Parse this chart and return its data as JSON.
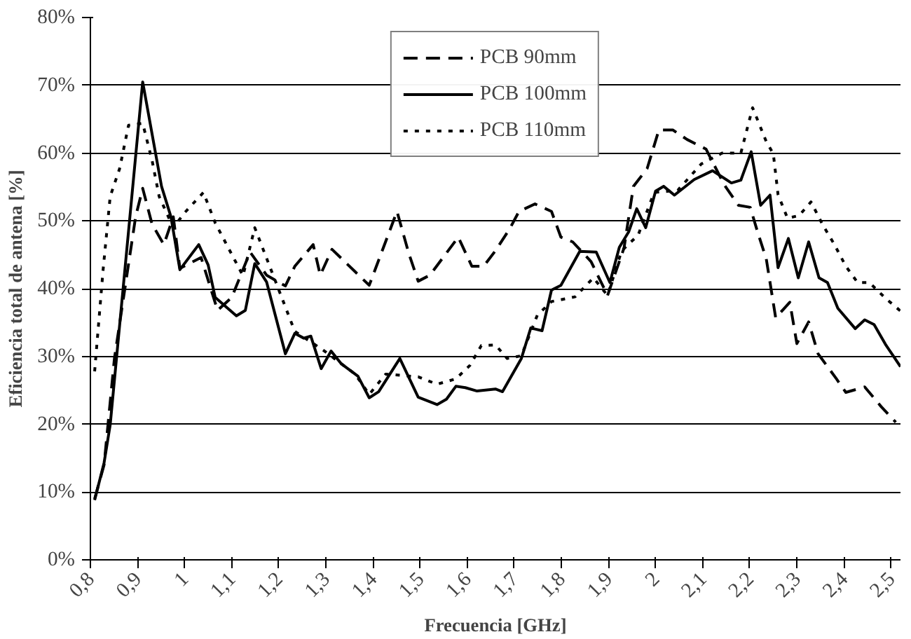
{
  "chart_data": {
    "type": "line",
    "xlabel": "Frecuencia [GHz]",
    "ylabel": "Eficiencia total de antena [%]",
    "xlim": [
      0.8,
      2.52
    ],
    "ylim": [
      0,
      80
    ],
    "xticks": [
      {
        "value": 0.8,
        "label": "0,8"
      },
      {
        "value": 0.9,
        "label": "0,9"
      },
      1,
      {
        "value": 1.1,
        "label": "1,1"
      },
      {
        "value": 1.2,
        "label": "1,2"
      },
      {
        "value": 1.3,
        "label": "1,3"
      },
      {
        "value": 1.4,
        "label": "1,4"
      },
      {
        "value": 1.5,
        "label": "1,5"
      },
      {
        "value": 1.6,
        "label": "1,6"
      },
      {
        "value": 1.7,
        "label": "1,7"
      },
      {
        "value": 1.8,
        "label": "1,8"
      },
      {
        "value": 1.9,
        "label": "1,9"
      },
      2,
      {
        "value": 2.1,
        "label": "2,1"
      },
      {
        "value": 2.2,
        "label": "2,2"
      },
      {
        "value": 2.3,
        "label": "2,3"
      },
      {
        "value": 2.4,
        "label": "2,4"
      },
      {
        "value": 2.5,
        "label": "2,5"
      }
    ],
    "yticks": [
      {
        "value": 0,
        "label": "0%"
      },
      {
        "value": 10,
        "label": "10%"
      },
      {
        "value": 20,
        "label": "20%"
      },
      {
        "value": 30,
        "label": "30%"
      },
      {
        "value": 40,
        "label": "40%"
      },
      {
        "value": 50,
        "label": "50%"
      },
      {
        "value": 60,
        "label": "60%"
      },
      {
        "value": 70,
        "label": "70%"
      },
      {
        "value": 80,
        "label": "80%"
      }
    ],
    "grid": "y",
    "legend": "top",
    "marker": "none",
    "series": [
      {
        "name": "PCB 90mm",
        "color": "#000000",
        "line_style": "dashed",
        "x": [
          0.809,
          0.829,
          0.851,
          0.896,
          0.911,
          0.931,
          0.956,
          0.976,
          0.99,
          1.035,
          1.07,
          1.1,
          1.139,
          1.174,
          1.214,
          1.234,
          1.273,
          1.288,
          1.313,
          1.392,
          1.451,
          1.476,
          1.496,
          1.521,
          1.581,
          1.61,
          1.635,
          1.66,
          1.69,
          1.71,
          1.744,
          1.779,
          1.799,
          1.824,
          1.863,
          1.898,
          1.933,
          1.953,
          1.982,
          2.007,
          2.037,
          2.067,
          2.107,
          2.146,
          2.176,
          2.201,
          2.216,
          2.235,
          2.255,
          2.285,
          2.3,
          2.325,
          2.345,
          2.384,
          2.404,
          2.444,
          2.479,
          2.51
        ],
        "values": [
          9,
          14,
          29.7,
          50.6,
          54.8,
          49.5,
          46.5,
          50.6,
          43,
          44.6,
          36.8,
          38.7,
          45.4,
          42,
          40.4,
          43.3,
          46.5,
          42,
          45.8,
          40.5,
          51.4,
          45.2,
          41.1,
          42,
          47.6,
          43.3,
          43.3,
          45.6,
          48.8,
          51.4,
          52.5,
          51.4,
          47.6,
          46.9,
          44,
          39,
          46,
          55.1,
          57.7,
          63.4,
          63.4,
          62,
          60.6,
          55.3,
          52.3,
          52,
          48.5,
          44.4,
          35.7,
          38,
          31.9,
          35.1,
          30.4,
          26.7,
          24.7,
          25.5,
          22.6,
          20.3
        ]
      },
      {
        "name": "PCB 100mm",
        "color": "#000000",
        "line_style": "solid",
        "x": [
          0.809,
          0.829,
          0.842,
          0.911,
          0.951,
          0.971,
          0.99,
          1.03,
          1.05,
          1.065,
          1.11,
          1.129,
          1.149,
          1.174,
          1.214,
          1.234,
          1.253,
          1.268,
          1.29,
          1.311,
          1.333,
          1.368,
          1.392,
          1.412,
          1.457,
          1.496,
          1.536,
          1.556,
          1.576,
          1.596,
          1.621,
          1.66,
          1.675,
          1.715,
          1.735,
          1.759,
          1.779,
          1.799,
          1.839,
          1.874,
          1.903,
          1.923,
          1.943,
          1.96,
          1.979,
          2.0,
          2.017,
          2.04,
          2.082,
          2.121,
          2.161,
          2.181,
          2.203,
          2.223,
          2.243,
          2.26,
          2.282,
          2.303,
          2.325,
          2.347,
          2.365,
          2.387,
          2.424,
          2.444,
          2.464,
          2.488,
          2.52
        ],
        "values": [
          8.8,
          14.3,
          19.9,
          70.5,
          55.1,
          50.6,
          42.8,
          46.5,
          43.5,
          38.7,
          36,
          36.8,
          43.7,
          41,
          30.4,
          33.4,
          32.7,
          33,
          28.2,
          30.8,
          28.9,
          27.1,
          23.9,
          24.8,
          29.7,
          24,
          22.9,
          23.7,
          25.6,
          25.4,
          24.9,
          25.2,
          24.8,
          29.7,
          34.2,
          33.8,
          39.8,
          40.5,
          45.5,
          45.4,
          40.9,
          46.1,
          48.4,
          51.8,
          49,
          54.4,
          55.1,
          53.8,
          56.1,
          57.4,
          55.6,
          56,
          60.2,
          52.3,
          53.8,
          43.1,
          47.4,
          41.6,
          46.9,
          41.6,
          40.9,
          37.1,
          34.1,
          35.4,
          34.7,
          31.8,
          28.5
        ]
      },
      {
        "name": "PCB 110mm",
        "color": "#000000",
        "line_style": "dotted",
        "x": [
          0.809,
          0.827,
          0.842,
          0.862,
          0.881,
          0.911,
          0.931,
          0.946,
          0.976,
          1.0,
          1.04,
          1.065,
          1.124,
          1.149,
          1.194,
          1.234,
          1.293,
          1.362,
          1.392,
          1.427,
          1.496,
          1.536,
          1.576,
          1.606,
          1.63,
          1.66,
          1.685,
          1.715,
          1.749,
          1.779,
          1.829,
          1.868,
          1.898,
          1.928,
          1.963,
          1.997,
          2.047,
          2.097,
          2.141,
          2.181,
          2.206,
          2.235,
          2.25,
          2.26,
          2.28,
          2.305,
          2.33,
          2.355,
          2.379,
          2.404,
          2.429,
          2.454,
          2.488,
          2.52
        ],
        "values": [
          27.8,
          42.8,
          53.6,
          57.7,
          64.1,
          64.4,
          58.9,
          53.6,
          49,
          51.2,
          54.2,
          49.7,
          41.9,
          49,
          40.9,
          33.7,
          31,
          27.4,
          24.4,
          27.4,
          27,
          25.9,
          26.7,
          28.7,
          31.6,
          31.7,
          29.7,
          30.1,
          36.1,
          38.1,
          38.8,
          41.6,
          39,
          45.6,
          47.9,
          54.2,
          54.5,
          58.4,
          60,
          60,
          66.7,
          61.7,
          59.9,
          53.9,
          50.4,
          50.8,
          52.8,
          49.4,
          46.6,
          43.3,
          40.9,
          40.9,
          38.6,
          36.7
        ]
      }
    ]
  }
}
